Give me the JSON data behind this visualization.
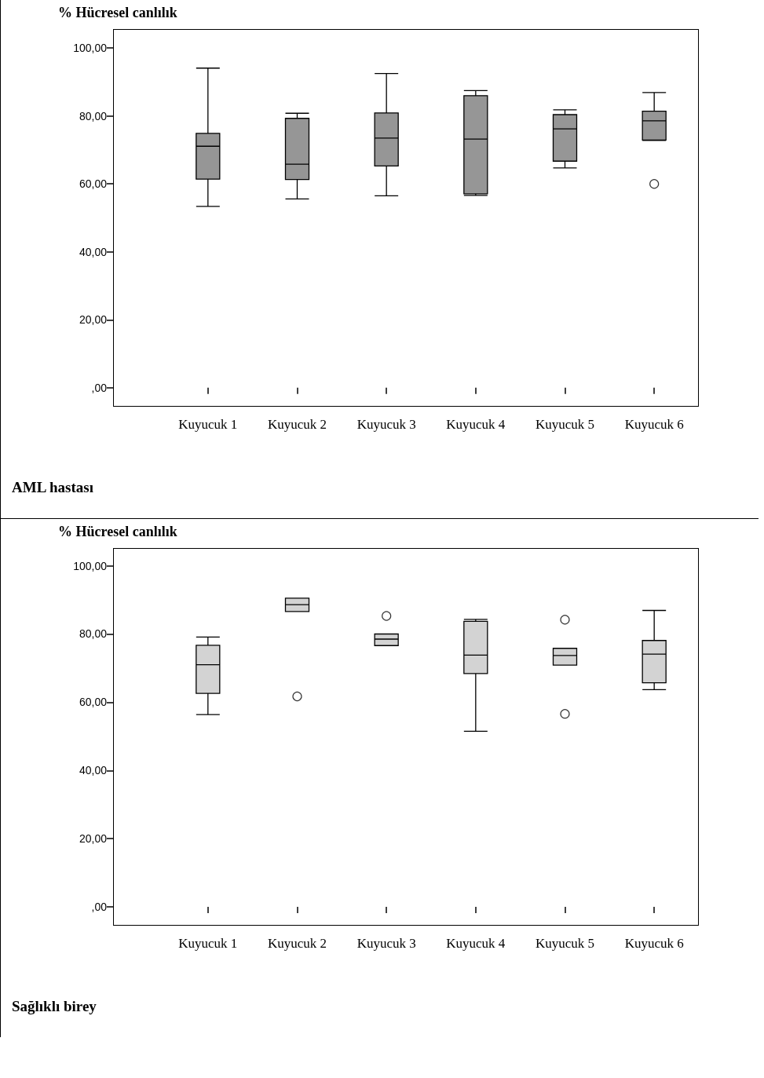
{
  "chart_data": [
    {
      "type": "box",
      "ylabel": "% Hücresel canlılık",
      "annotations": [
        "AML hastası"
      ],
      "categories": [
        "Kuyucuk 1",
        "Kuyucuk 2",
        "Kuyucuk 3",
        "Kuyucuk 4",
        "Kuyucuk 5",
        "Kuyucuk 6"
      ],
      "series": [
        {
          "color": "#969696",
          "boxes": [
            {
              "low": 53.4,
              "q1": 61.4,
              "median": 71.1,
              "q3": 74.9,
              "high": 94.1
            },
            {
              "low": 55.6,
              "q1": 61.3,
              "median": 65.8,
              "q3": 79.3,
              "high": 80.8
            },
            {
              "low": 56.5,
              "q1": 65.3,
              "median": 73.5,
              "q3": 80.9,
              "high": 92.5
            },
            {
              "low": 56.6,
              "q1": 57.1,
              "median": 73.2,
              "q3": 86.0,
              "high": 87.5
            },
            {
              "low": 64.7,
              "q1": 66.7,
              "median": 76.2,
              "q3": 80.4,
              "high": 81.8
            },
            {
              "low": 72.8,
              "q1": 72.9,
              "median": 78.6,
              "q3": 81.4,
              "high": 86.9,
              "outliers": [
                60
              ]
            }
          ]
        }
      ],
      "ylim": [
        -5.6,
        105.6
      ],
      "yticks": [
        {
          "value": 0,
          "label": ",00"
        },
        {
          "value": 20,
          "label": "20,00"
        },
        {
          "value": 40,
          "label": "40,00"
        },
        {
          "value": 60,
          "label": "60,00"
        },
        {
          "value": 80,
          "label": "80,00"
        },
        {
          "value": 100,
          "label": "100,00"
        }
      ],
      "grid": false
    },
    {
      "type": "box",
      "ylabel": "% Hücresel canlılık",
      "annotations": [
        "Sağlıklı birey"
      ],
      "categories": [
        "Kuyucuk 1",
        "Kuyucuk 2",
        "Kuyucuk 3",
        "Kuyucuk 4",
        "Kuyucuk 5",
        "Kuyucuk 6"
      ],
      "series": [
        {
          "color": "#d3d3d3",
          "boxes": [
            {
              "low": 56.4,
              "q1": 62.6,
              "median": 71.0,
              "q3": 76.7,
              "high": 79.1
            },
            {
              "low": 86.6,
              "q1": 86.6,
              "median": 88.6,
              "q3": 90.5,
              "high": 90.5,
              "outliers": [
                61.7
              ]
            },
            {
              "low": 76.6,
              "q1": 76.6,
              "median": 78.5,
              "q3": 80.0,
              "high": 80.0,
              "outliers": [
                85.3
              ]
            },
            {
              "low": 51.5,
              "q1": 68.4,
              "median": 73.8,
              "q3": 83.7,
              "high": 84.3
            },
            {
              "low": 70.9,
              "q1": 70.9,
              "median": 73.7,
              "q3": 75.8,
              "high": 75.8,
              "outliers": [
                84.2,
                56.6
              ]
            },
            {
              "low": 63.7,
              "q1": 65.7,
              "median": 74.1,
              "q3": 78.1,
              "high": 86.9
            }
          ]
        }
      ],
      "ylim": [
        -5.5,
        105.2
      ],
      "yticks": [
        {
          "value": 0,
          "label": ",00"
        },
        {
          "value": 20,
          "label": "20,00"
        },
        {
          "value": 40,
          "label": "40,00"
        },
        {
          "value": 60,
          "label": "60,00"
        },
        {
          "value": 80,
          "label": "80,00"
        },
        {
          "value": 100,
          "label": "100,00"
        }
      ],
      "grid": false
    }
  ]
}
